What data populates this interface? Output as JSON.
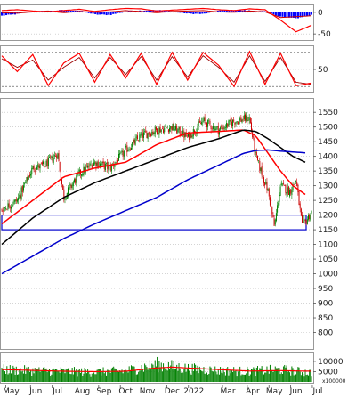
{
  "chart_data": [
    {
      "panel": "top-oscillator",
      "type": "line",
      "ytick_labels": [
        "0",
        "-50"
      ],
      "yticks": [
        0,
        -50
      ],
      "ylim": [
        -62,
        12
      ],
      "x": [
        0,
        0.05,
        0.1,
        0.15,
        0.2,
        0.25,
        0.3,
        0.35,
        0.4,
        0.45,
        0.5,
        0.55,
        0.6,
        0.65,
        0.7,
        0.75,
        0.8,
        0.85,
        0.9,
        0.95,
        1.0
      ],
      "series": [
        {
          "values": [
            4,
            6,
            3,
            1,
            4,
            7,
            2,
            6,
            9,
            8,
            3,
            5,
            7,
            9,
            6,
            4,
            8,
            6,
            -18,
            -45,
            -30
          ]
        },
        {
          "values": [
            -1,
            -2,
            1,
            3,
            -1,
            2,
            0,
            1,
            4,
            2,
            -1,
            2,
            3,
            4,
            1,
            0,
            3,
            1,
            -12,
            -10,
            -8
          ]
        }
      ],
      "histogram": [
        -8,
        -4,
        2,
        3,
        5,
        4,
        -5,
        -6,
        2,
        4,
        5,
        3,
        -3,
        -4,
        4,
        5,
        4,
        2,
        -10,
        -14,
        -6
      ],
      "colors": {
        "series_1": "#ff0000",
        "series_2": "#cc0000",
        "histogram": "#0000ff"
      },
      "grid": "dotted-horizontal"
    },
    {
      "panel": "stochastic",
      "type": "line",
      "ytick_labels": [
        "50"
      ],
      "yticks": [
        50
      ],
      "ylim": [
        0,
        100
      ],
      "x": [
        0,
        0.05,
        0.1,
        0.15,
        0.2,
        0.25,
        0.3,
        0.35,
        0.4,
        0.45,
        0.5,
        0.55,
        0.6,
        0.65,
        0.7,
        0.75,
        0.8,
        0.85,
        0.9,
        0.95,
        1.0
      ],
      "series": [
        {
          "values": [
            82,
            45,
            85,
            12,
            65,
            88,
            20,
            85,
            30,
            88,
            15,
            90,
            25,
            90,
            60,
            10,
            92,
            15,
            88,
            12,
            18
          ]
        },
        {
          "values": [
            75,
            55,
            72,
            25,
            55,
            78,
            30,
            78,
            38,
            80,
            25,
            80,
            32,
            82,
            55,
            20,
            82,
            22,
            78,
            20,
            15
          ]
        }
      ],
      "colors": {
        "series_1": "#ff0000",
        "series_2": "#990000"
      },
      "grid": "dotted-horizontal"
    },
    {
      "panel": "price",
      "type": "candlestick",
      "ytick_labels": [
        "1550",
        "1500",
        "1450",
        "1400",
        "1350",
        "1300",
        "1250",
        "1200",
        "1150",
        "1100",
        "1050",
        "1000",
        "950",
        "900",
        "850",
        "800"
      ],
      "yticks": [
        1550,
        1500,
        1450,
        1400,
        1350,
        1300,
        1250,
        1200,
        1150,
        1100,
        1050,
        1000,
        950,
        900,
        850,
        800
      ],
      "ylim": [
        750,
        1590
      ],
      "xtick_labels": [
        "May",
        "Jun",
        "Jul",
        "Aug",
        "Sep",
        "Oct",
        "Nov",
        "Dec",
        "2022",
        "Mar",
        "Apr",
        "May",
        "Jun",
        "Jul"
      ],
      "xtick_positions": [
        0.03,
        0.11,
        0.18,
        0.26,
        0.33,
        0.4,
        0.47,
        0.55,
        0.62,
        0.73,
        0.81,
        0.88,
        0.95,
        1.02
      ],
      "close_keyframes": {
        "x": [
          0,
          0.05,
          0.1,
          0.14,
          0.18,
          0.2,
          0.25,
          0.3,
          0.35,
          0.4,
          0.45,
          0.5,
          0.55,
          0.6,
          0.65,
          0.7,
          0.75,
          0.8,
          0.82,
          0.86,
          0.88,
          0.9,
          0.93,
          0.95,
          0.97,
          1.0
        ],
        "y": [
          1220,
          1250,
          1360,
          1370,
          1410,
          1260,
          1340,
          1380,
          1360,
          1420,
          1470,
          1490,
          1500,
          1465,
          1520,
          1490,
          1520,
          1530,
          1400,
          1280,
          1160,
          1300,
          1280,
          1320,
          1160,
          1210
        ]
      },
      "moving_averages": [
        {
          "color": "#ff0000",
          "x": [
            0,
            0.1,
            0.2,
            0.3,
            0.4,
            0.5,
            0.6,
            0.7,
            0.78,
            0.82,
            0.86,
            0.9,
            0.94,
            0.98
          ],
          "values": [
            1170,
            1250,
            1330,
            1360,
            1380,
            1440,
            1480,
            1485,
            1490,
            1470,
            1410,
            1350,
            1300,
            1270
          ]
        },
        {
          "color": "#000000",
          "x": [
            0,
            0.1,
            0.2,
            0.3,
            0.4,
            0.5,
            0.6,
            0.7,
            0.78,
            0.82,
            0.86,
            0.9,
            0.94,
            0.98
          ],
          "values": [
            1100,
            1190,
            1260,
            1310,
            1350,
            1390,
            1430,
            1460,
            1490,
            1485,
            1460,
            1430,
            1400,
            1380
          ]
        },
        {
          "color": "#0000cc",
          "x": [
            0,
            0.1,
            0.2,
            0.3,
            0.4,
            0.5,
            0.6,
            0.7,
            0.78,
            0.82,
            0.86,
            0.9,
            0.94,
            0.98
          ],
          "values": [
            1000,
            1060,
            1120,
            1170,
            1215,
            1260,
            1320,
            1370,
            1410,
            1420,
            1422,
            1418,
            1415,
            1412
          ]
        }
      ],
      "support_zone": {
        "low": 1150,
        "high": 1200,
        "color": "#0000cc"
      },
      "grid": "dotted-horizontal"
    },
    {
      "panel": "volume",
      "type": "bar",
      "ytick_labels": [
        "10000",
        "5000"
      ],
      "yticks": [
        10000,
        5000
      ],
      "ylim": [
        0,
        13000
      ],
      "unit_label": "x100000",
      "volume_keyframes": {
        "x": [
          0,
          0.1,
          0.2,
          0.3,
          0.4,
          0.5,
          0.55,
          0.6,
          0.7,
          0.8,
          0.9,
          1.0
        ],
        "y": [
          6000,
          5500,
          5200,
          4800,
          5400,
          8500,
          7500,
          6500,
          5500,
          5200,
          6000,
          4500
        ]
      },
      "volume_ma": {
        "color": "#ff0000",
        "x": [
          0,
          0.1,
          0.2,
          0.3,
          0.4,
          0.5,
          0.55,
          0.6,
          0.7,
          0.8,
          0.9,
          1.0
        ],
        "values": [
          6000,
          5600,
          5200,
          5000,
          5200,
          6800,
          7200,
          6800,
          6000,
          5300,
          5500,
          5200
        ]
      },
      "bar_color": "#008000",
      "grid": "dotted-horizontal"
    }
  ]
}
